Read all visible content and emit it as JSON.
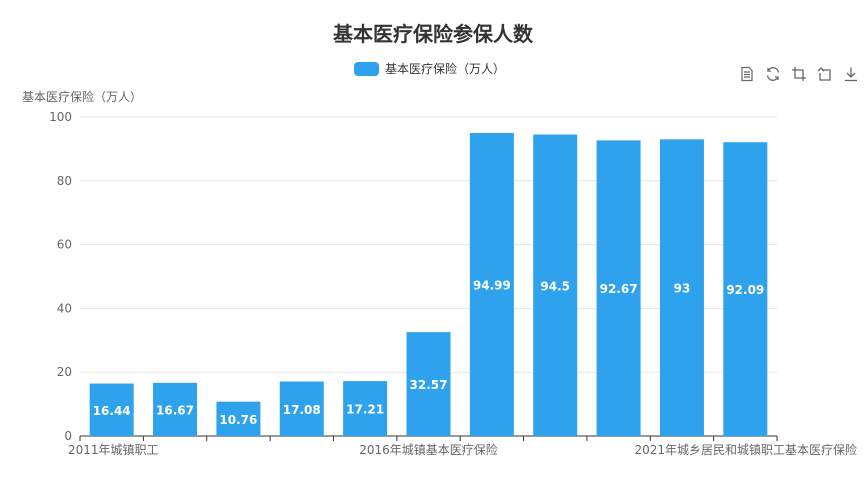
{
  "toolbox": {
    "icons": [
      "data-view-icon",
      "restore-icon",
      "zoom-icon",
      "zoom-back-icon",
      "download-icon"
    ]
  },
  "colors": {
    "bar": "#2fa2ee",
    "axis": "#333333",
    "grid": "#e6e6e6",
    "text": "#666666"
  },
  "chart_data": {
    "type": "bar",
    "title": "基本医疗保险参保人数",
    "ylabel": "基本医疗保险（万人）",
    "xlabel": "",
    "ylim": [
      0,
      100
    ],
    "yticks": [
      0,
      20,
      40,
      60,
      80,
      100
    ],
    "legend": "top-center",
    "grid": true,
    "categories": [
      "2011年城镇职工",
      "",
      "",
      "",
      "",
      "2016年城镇基本医疗保险",
      "",
      "",
      "",
      "",
      "2021年城乡居民和城镇职工基本医疗保险"
    ],
    "series": [
      {
        "name": "基本医疗保险（万人）",
        "values": [
          16.44,
          16.67,
          10.76,
          17.08,
          17.21,
          32.57,
          94.99,
          94.5,
          92.67,
          93,
          92.09
        ],
        "labels": [
          "16.44",
          "16.67",
          "10.76",
          "17.08",
          "17.21",
          "32.57",
          "94.99",
          "94.5",
          "92.67",
          "93",
          "92.09"
        ]
      }
    ]
  }
}
